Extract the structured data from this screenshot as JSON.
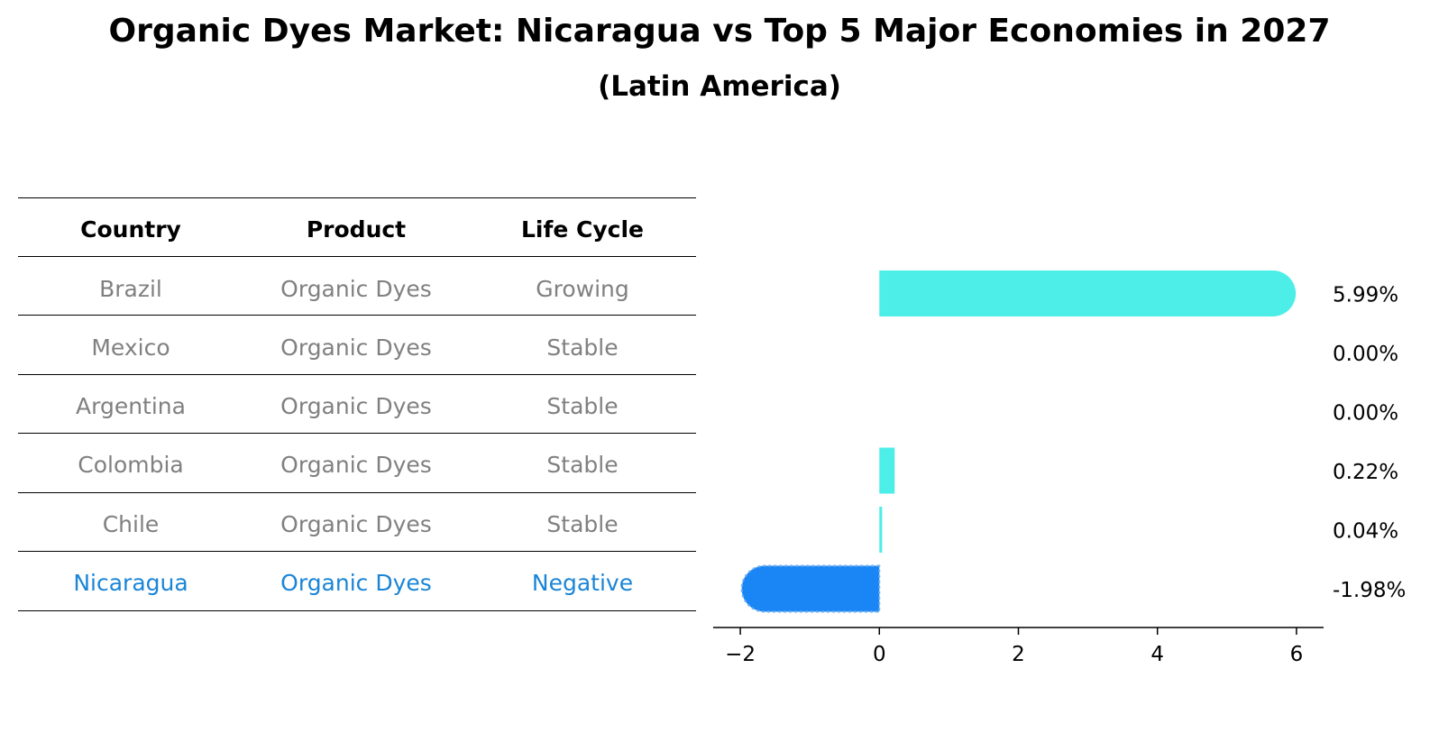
{
  "title": "Organic Dyes Market: Nicaragua vs Top 5 Major Economies in 2027",
  "subtitle": "(Latin America)",
  "table": {
    "headers": [
      "Country",
      "Product",
      "Life Cycle"
    ],
    "rows": [
      [
        "Brazil",
        "Organic Dyes",
        "Growing"
      ],
      [
        "Mexico",
        "Organic Dyes",
        "Stable"
      ],
      [
        "Argentina",
        "Organic Dyes",
        "Stable"
      ],
      [
        "Colombia",
        "Organic Dyes",
        "Stable"
      ],
      [
        "Chile",
        "Organic Dyes",
        "Stable"
      ],
      [
        "Nicaragua",
        "Organic Dyes",
        "Negative"
      ]
    ],
    "highlight_row": 5
  },
  "colors": {
    "bar": "#4deee8",
    "highlight_bar": "#1a85f5",
    "table_text": "#808080",
    "highlight_text": "#1a85d6"
  },
  "chart_data": {
    "type": "bar",
    "orientation": "horizontal",
    "categories": [
      "Brazil",
      "Mexico",
      "Argentina",
      "Colombia",
      "Chile",
      "Nicaragua"
    ],
    "values": [
      5.99,
      0.0,
      0.0,
      0.22,
      0.04,
      -1.98
    ],
    "labels": [
      "5.99%",
      "0.00%",
      "0.00%",
      "0.22%",
      "0.04%",
      "-1.98%"
    ],
    "highlight_index": 5,
    "xticks": [
      -2,
      0,
      2,
      4,
      6
    ],
    "xtick_labels": [
      "−2",
      "0",
      "2",
      "4",
      "6"
    ],
    "xlim": [
      -2.39,
      6.39
    ],
    "grid": false
  }
}
